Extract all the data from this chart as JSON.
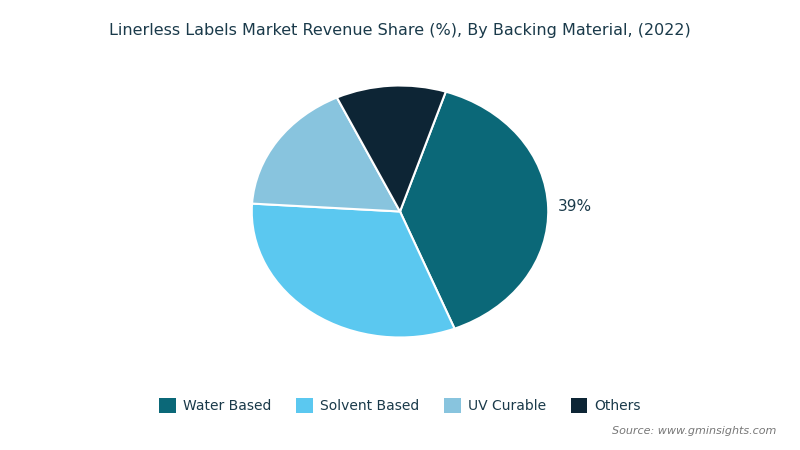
{
  "title": "Linerless Labels Market Revenue Share (%), By Backing Material, (2022)",
  "labels": [
    "Water Based",
    "Solvent Based",
    "UV Curable",
    "Others"
  ],
  "sizes": [
    39,
    32,
    17,
    12
  ],
  "colors": [
    "#0b6878",
    "#5bc8f0",
    "#88c4de",
    "#0d2535"
  ],
  "source_text": "Source: www.gminsights.com",
  "title_color": "#1a3a4a",
  "legend_fontsize": 10,
  "title_fontsize": 11.5,
  "background_color": "#ffffff",
  "startangle": 72,
  "pct_text": "39%",
  "pct_color": "#1a3a4a"
}
